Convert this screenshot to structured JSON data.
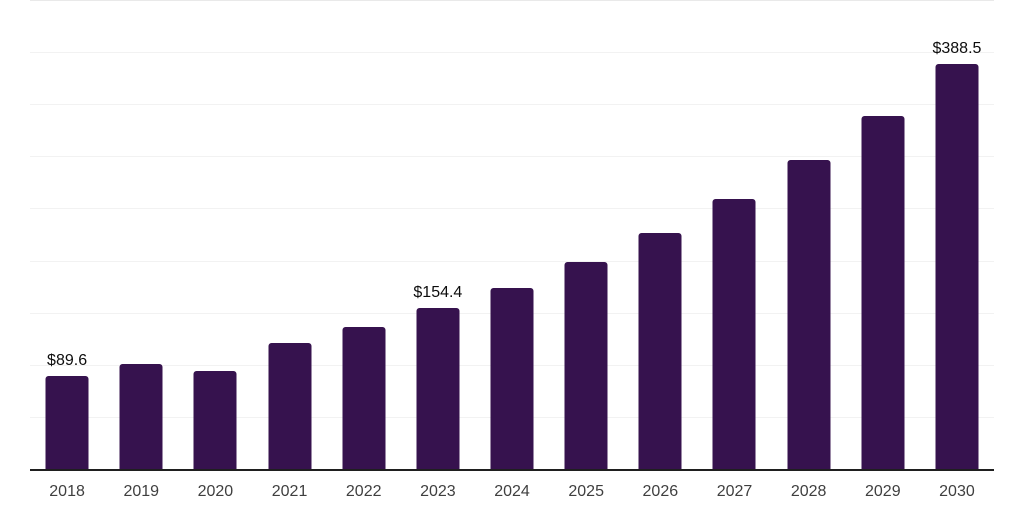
{
  "chart_data": {
    "type": "bar",
    "title": "",
    "xlabel": "",
    "ylabel": "",
    "categories": [
      "2018",
      "2019",
      "2020",
      "2021",
      "2022",
      "2023",
      "2024",
      "2025",
      "2026",
      "2027",
      "2028",
      "2029",
      "2030"
    ],
    "values": [
      89.6,
      101.1,
      94.2,
      121.2,
      135.8,
      154.4,
      174.0,
      198.5,
      226.3,
      259.1,
      296.5,
      339.0,
      388.5
    ],
    "data_labels": [
      {
        "index": 0,
        "text": "$89.6"
      },
      {
        "index": 5,
        "text": "$154.4"
      },
      {
        "index": 12,
        "text": "$388.5"
      }
    ],
    "ylim": [
      0,
      450
    ],
    "gridline_interval": 50,
    "grid": true,
    "legend": false,
    "y_axis_labels_visible": false,
    "colors": {
      "bar": "#36124E",
      "axis_line": "#1f1f1f",
      "gridline": "#f2f2f2",
      "top_gridline": "#e9e9e9",
      "tick_label": "#3f3f3f",
      "data_label": "#0d0d0d",
      "background": "#ffffff"
    }
  }
}
